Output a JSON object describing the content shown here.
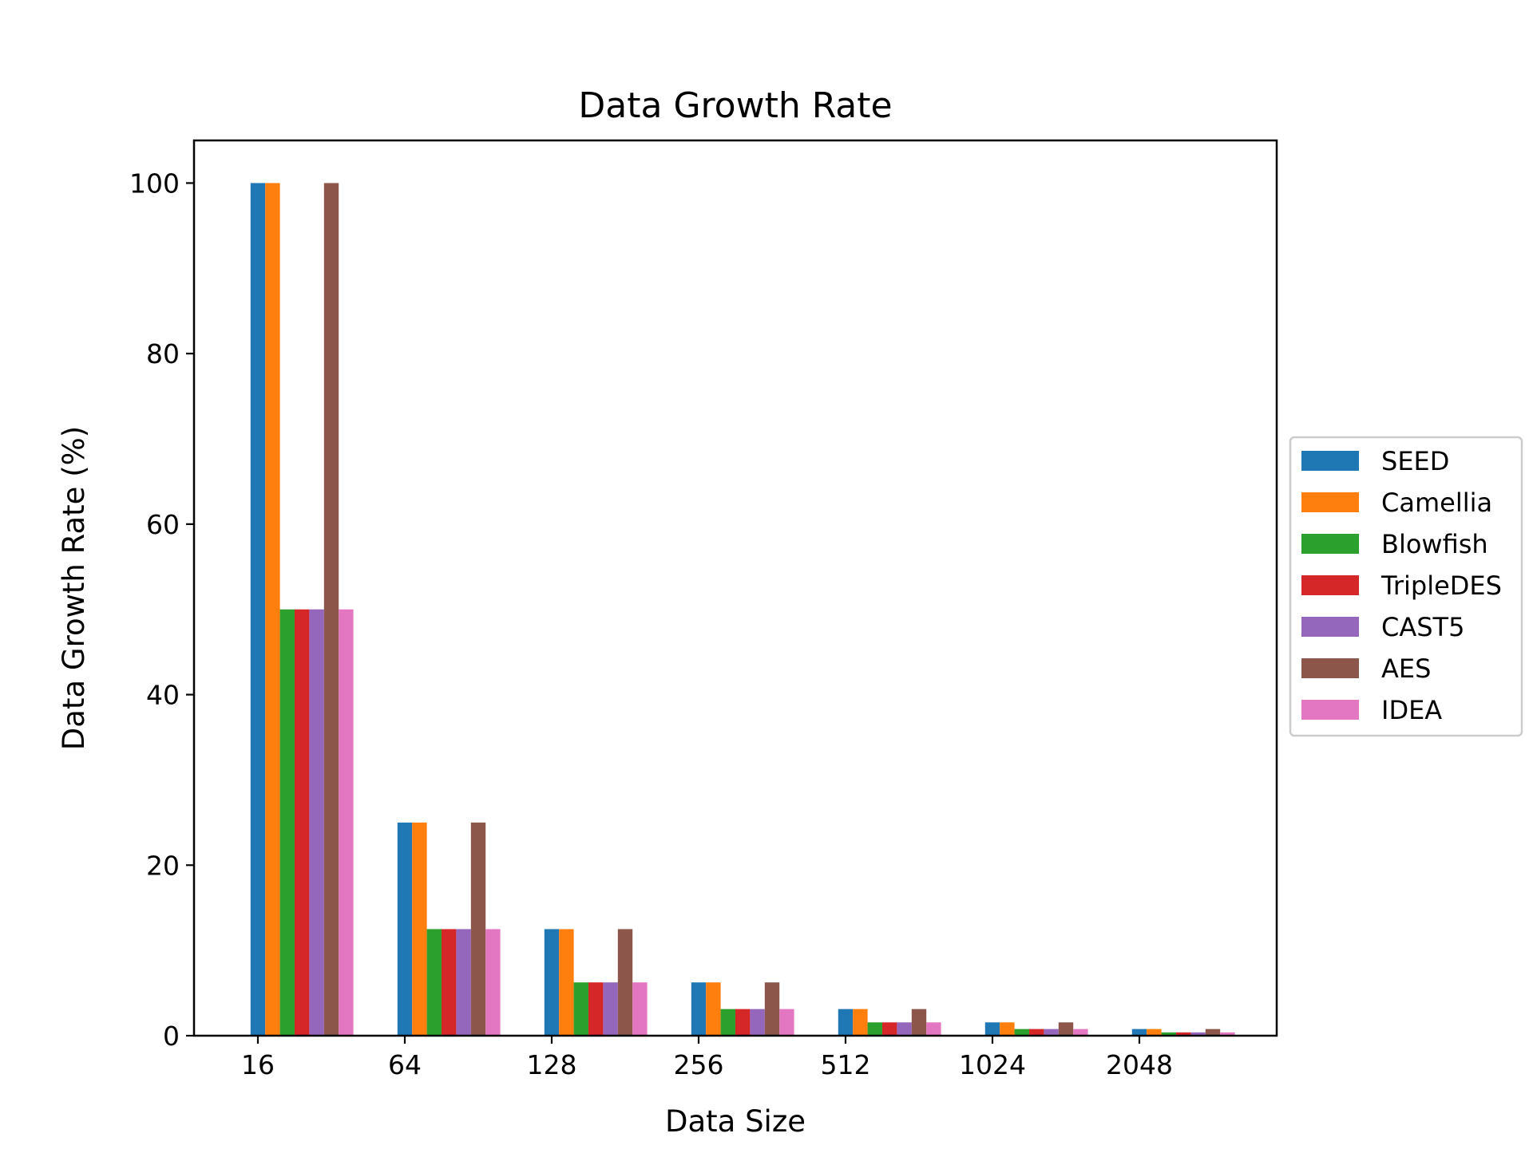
{
  "chart_data": {
    "type": "bar",
    "title": "Data Growth Rate",
    "xlabel": "Data Size",
    "ylabel": "Data Growth Rate (%)",
    "categories": [
      "16",
      "64",
      "128",
      "256",
      "512",
      "1024",
      "2048"
    ],
    "yticks": [
      0,
      20,
      40,
      60,
      80,
      100
    ],
    "ylim": [
      0,
      105
    ],
    "grid": false,
    "legend_position": "right-center",
    "series": [
      {
        "name": "SEED",
        "color": "#1f77b4",
        "values": [
          100,
          25,
          12.5,
          6.25,
          3.125,
          1.5625,
          0.78125
        ]
      },
      {
        "name": "Camellia",
        "color": "#ff7f0e",
        "values": [
          100,
          25,
          12.5,
          6.25,
          3.125,
          1.5625,
          0.78125
        ]
      },
      {
        "name": "Blowfish",
        "color": "#2ca02c",
        "values": [
          50,
          12.5,
          6.25,
          3.125,
          1.5625,
          0.78125,
          0.390625
        ]
      },
      {
        "name": "TripleDES",
        "color": "#d62728",
        "values": [
          50,
          12.5,
          6.25,
          3.125,
          1.5625,
          0.78125,
          0.390625
        ]
      },
      {
        "name": "CAST5",
        "color": "#9467bd",
        "values": [
          50,
          12.5,
          6.25,
          3.125,
          1.5625,
          0.78125,
          0.390625
        ]
      },
      {
        "name": "AES",
        "color": "#8c564b",
        "values": [
          100,
          25,
          12.5,
          6.25,
          3.125,
          1.5625,
          0.78125
        ]
      },
      {
        "name": "IDEA",
        "color": "#e377c2",
        "values": [
          50,
          12.5,
          6.25,
          3.125,
          1.5625,
          0.78125,
          0.390625
        ]
      }
    ]
  }
}
